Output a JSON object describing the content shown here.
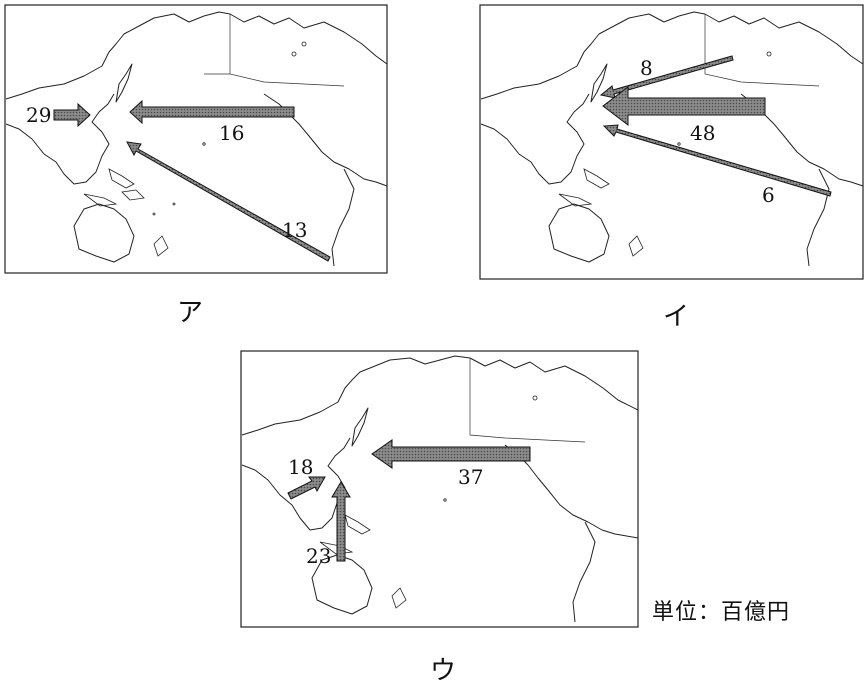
{
  "unit_note": "単位：百億円",
  "arrow_fill": "#8c8c8c",
  "panels": [
    {
      "label": "ア",
      "arrows": [
        {
          "value": "29"
        },
        {
          "value": "16"
        },
        {
          "value": "13"
        }
      ]
    },
    {
      "label": "イ",
      "arrows": [
        {
          "value": "8"
        },
        {
          "value": "48"
        },
        {
          "value": "6"
        }
      ]
    },
    {
      "label": "ウ",
      "arrows": [
        {
          "value": "18"
        },
        {
          "value": "37"
        },
        {
          "value": "23"
        }
      ]
    }
  ]
}
